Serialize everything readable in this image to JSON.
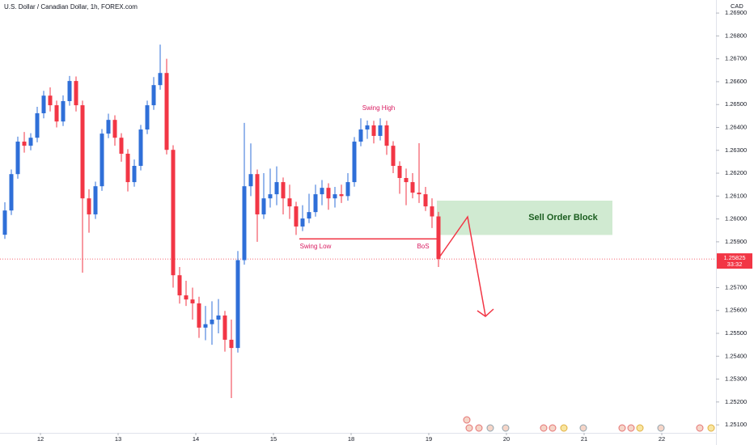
{
  "chart_data": {
    "type": "candlestick",
    "title": "U.S. Dollar / Canadian Dollar, 1h, FOREX.com",
    "currency_label": "CAD",
    "up_color": "#2f6fd8",
    "down_color": "#f23645",
    "open": [
      1.25931,
      1.26037,
      1.26196,
      1.26338,
      1.2632,
      1.26355,
      1.26462,
      1.26539,
      1.26497,
      1.26426,
      1.26515,
      1.26603,
      1.26497,
      1.2609,
      1.2602,
      1.26143,
      1.26373,
      1.26433,
      1.26355,
      1.26285,
      1.26161,
      1.26232,
      1.26391,
      1.26497,
      1.26585,
      1.26638,
      1.26302,
      1.25754,
      1.25666,
      1.25648,
      1.25631,
      1.25525,
      1.2554,
      1.2556,
      1.25578,
      1.25472,
      1.25436,
      1.2582,
      1.26143,
      1.26196,
      1.2602,
      1.2609,
      1.26108,
      1.26161,
      1.2609,
      1.26055,
      1.25967,
      1.26002,
      1.2603,
      1.26108,
      1.26136,
      1.2609,
      1.26108,
      1.261,
      1.26161,
      1.26338,
      1.26391,
      1.26409,
      1.26363,
      1.26409,
      1.2632,
      1.26232,
      1.26179,
      1.26161,
      1.26115,
      1.26108,
      1.26055,
      1.26011
    ],
    "high": [
      1.26073,
      1.26216,
      1.2636,
      1.2638,
      1.26375,
      1.2649,
      1.2656,
      1.26575,
      1.26517,
      1.2654,
      1.26625,
      1.26623,
      1.26517,
      1.2613,
      1.26163,
      1.26393,
      1.2646,
      1.26453,
      1.26375,
      1.26305,
      1.2626,
      1.26411,
      1.26517,
      1.2662,
      1.26762,
      1.267,
      1.26322,
      1.2579,
      1.2573,
      1.257,
      1.2566,
      1.2562,
      1.2564,
      1.2565,
      1.25598,
      1.2556,
      1.2586,
      1.2642,
      1.2633,
      1.26216,
      1.262,
      1.2622,
      1.2623,
      1.26181,
      1.2615,
      1.26075,
      1.2606,
      1.2611,
      1.2615,
      1.2617,
      1.26156,
      1.2614,
      1.2615,
      1.262,
      1.26358,
      1.2644,
      1.2643,
      1.26429,
      1.2644,
      1.26429,
      1.2634,
      1.26252,
      1.2622,
      1.262,
      1.26331,
      1.2614,
      1.2609,
      1.26031
    ],
    "low": [
      1.25913,
      1.26017,
      1.26176,
      1.2629,
      1.263,
      1.26335,
      1.2644,
      1.2647,
      1.264,
      1.26406,
      1.26495,
      1.2647,
      1.25765,
      1.2594,
      1.26,
      1.26123,
      1.26353,
      1.2632,
      1.2625,
      1.2612,
      1.26141,
      1.26212,
      1.26371,
      1.26477,
      1.26565,
      1.26282,
      1.257,
      1.2563,
      1.2562,
      1.2556,
      1.2548,
      1.2547,
      1.2545,
      1.255,
      1.2542,
      1.25217,
      1.25416,
      1.258,
      1.261,
      1.259,
      1.26,
      1.2605,
      1.2606,
      1.2602,
      1.26,
      1.2593,
      1.25947,
      1.25982,
      1.2601,
      1.2606,
      1.2604,
      1.2605,
      1.2607,
      1.2608,
      1.26141,
      1.26318,
      1.2635,
      1.2633,
      1.26343,
      1.2628,
      1.262,
      1.2611,
      1.2606,
      1.2609,
      1.2607,
      1.26035,
      1.2596,
      1.2579
    ],
    "close": [
      1.26037,
      1.26196,
      1.26338,
      1.2632,
      1.26355,
      1.26462,
      1.26539,
      1.26497,
      1.26426,
      1.26515,
      1.26603,
      1.26497,
      1.2609,
      1.2602,
      1.26143,
      1.26373,
      1.26433,
      1.26355,
      1.26285,
      1.26161,
      1.26232,
      1.26391,
      1.26497,
      1.26585,
      1.26638,
      1.26302,
      1.25754,
      1.25666,
      1.25648,
      1.25631,
      1.25525,
      1.2554,
      1.2556,
      1.25578,
      1.25472,
      1.25436,
      1.2582,
      1.26143,
      1.26196,
      1.2602,
      1.2609,
      1.26108,
      1.26161,
      1.2609,
      1.26055,
      1.25967,
      1.26002,
      1.2603,
      1.26108,
      1.26136,
      1.2609,
      1.26108,
      1.261,
      1.26161,
      1.26338,
      1.26391,
      1.26409,
      1.26363,
      1.26409,
      1.2632,
      1.26232,
      1.26179,
      1.26161,
      1.26115,
      1.26108,
      1.26055,
      1.26011,
      1.25825
    ],
    "xlim": [
      -0.75,
      109.875
    ],
    "xticks": [
      {
        "value": 5.5,
        "label": "12"
      },
      {
        "value": 17.5,
        "label": "13"
      },
      {
        "value": 29.5,
        "label": "14"
      },
      {
        "value": 41.5,
        "label": "15"
      },
      {
        "value": 53.5,
        "label": "18"
      },
      {
        "value": 65.5,
        "label": "19"
      },
      {
        "value": 77.5,
        "label": "20"
      },
      {
        "value": 89.5,
        "label": "21"
      },
      {
        "value": 101.5,
        "label": "22"
      }
    ],
    "ylim": [
      1.25065,
      1.26957
    ],
    "yticks": [
      {
        "value": 1.269,
        "label": "1.26900"
      },
      {
        "value": 1.268,
        "label": "1.26800"
      },
      {
        "value": 1.267,
        "label": "1.26700"
      },
      {
        "value": 1.266,
        "label": "1.26600"
      },
      {
        "value": 1.265,
        "label": "1.26500"
      },
      {
        "value": 1.264,
        "label": "1.26400"
      },
      {
        "value": 1.263,
        "label": "1.26300"
      },
      {
        "value": 1.262,
        "label": "1.26200"
      },
      {
        "value": 1.261,
        "label": "1.26100"
      },
      {
        "value": 1.26,
        "label": "1.26000"
      },
      {
        "value": 1.259,
        "label": "1.25900"
      },
      {
        "value": 1.257,
        "label": "1.25700"
      },
      {
        "value": 1.256,
        "label": "1.25600"
      },
      {
        "value": 1.255,
        "label": "1.25500"
      },
      {
        "value": 1.254,
        "label": "1.25400"
      },
      {
        "value": 1.253,
        "label": "1.25300"
      },
      {
        "value": 1.252,
        "label": "1.25200"
      },
      {
        "value": 1.251,
        "label": "1.25100"
      }
    ],
    "grid": false,
    "last_price": 1.25825,
    "countdown": "33:32",
    "break_level": 1.25913,
    "zone": {
      "label": "Sell Order Block",
      "high": 1.2608,
      "low": 1.2593,
      "color": "#c8e6c9"
    },
    "annotations": [
      "Swing High",
      "Swing Low",
      "BoS"
    ]
  }
}
